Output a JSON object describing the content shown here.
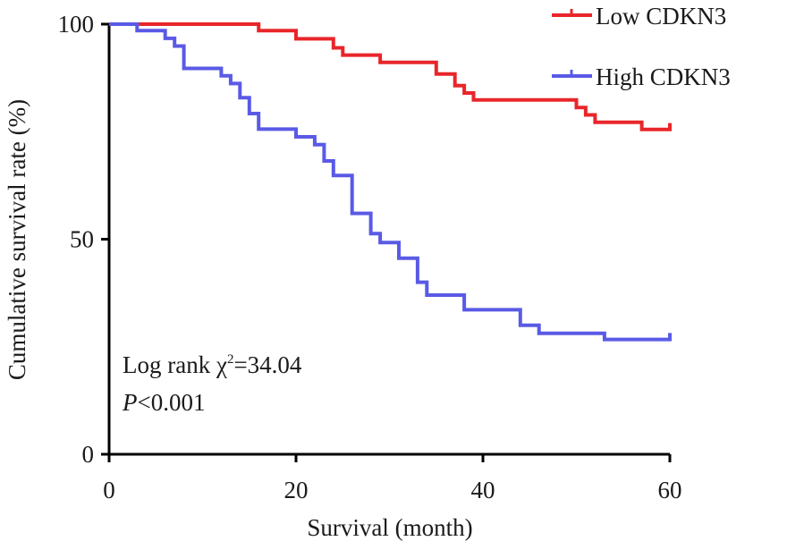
{
  "chart_data": {
    "type": "line",
    "step": true,
    "title": "",
    "xlabel": "Survival (month)",
    "ylabel": "Cumulative survival rate (%)",
    "xlim": [
      0,
      60
    ],
    "ylim": [
      0,
      100
    ],
    "xticks": [
      "0",
      "20",
      "40",
      "60"
    ],
    "yticks": [
      "0",
      "50",
      "100"
    ],
    "grid": false,
    "legend_position": "top-right",
    "annotation": {
      "stat_prefix": "Log rank χ",
      "stat_sup": "2",
      "stat_value": "=34.04",
      "p_italic": "P",
      "p_rest": "<0.001"
    },
    "series": [
      {
        "name": "Low CDKN3",
        "color": "#e8262a",
        "x": [
          0,
          16,
          16,
          20,
          20,
          24,
          24,
          25,
          25,
          29,
          29,
          35,
          35,
          37,
          37,
          38,
          38,
          39,
          39,
          50,
          50,
          51,
          51,
          52,
          52,
          57,
          57,
          60,
          60
        ],
        "y": [
          100,
          100,
          98.5,
          98.5,
          96.6,
          96.6,
          94.5,
          94.5,
          92.8,
          92.8,
          91.1,
          91.1,
          88.4,
          88.4,
          85.7,
          85.7,
          84.0,
          84.0,
          82.4,
          82.4,
          80.6,
          80.6,
          78.9,
          78.9,
          77.2,
          77.2,
          75.5,
          75.5,
          77.0
        ],
        "censor_x": [
          60
        ]
      },
      {
        "name": "High CDKN3",
        "color": "#5a5ae6",
        "x": [
          0,
          3,
          3,
          6,
          6,
          7,
          7,
          8,
          8,
          12,
          12,
          13,
          13,
          14,
          14,
          15,
          15,
          16,
          16,
          20,
          20,
          22,
          22,
          23,
          23,
          24,
          24,
          26,
          26,
          28,
          28,
          29,
          29,
          31,
          31,
          33,
          33,
          34,
          34,
          38,
          38,
          44,
          44,
          46,
          46,
          53,
          53,
          60,
          60
        ],
        "y": [
          100,
          100,
          98.5,
          98.5,
          96.7,
          96.7,
          94.9,
          94.9,
          89.7,
          89.7,
          88.0,
          88.0,
          86.2,
          86.2,
          82.9,
          82.9,
          79.2,
          79.2,
          75.6,
          75.6,
          73.8,
          73.8,
          72.0,
          72.0,
          68.2,
          68.2,
          64.8,
          64.8,
          56.0,
          56.0,
          51.3,
          51.3,
          49.2,
          49.2,
          45.6,
          45.6,
          40.0,
          40.0,
          37.0,
          37.0,
          33.6,
          33.6,
          30.0,
          30.0,
          28.1,
          28.1,
          26.7,
          26.7,
          28.2
        ],
        "censor_x": [
          60
        ]
      }
    ]
  }
}
